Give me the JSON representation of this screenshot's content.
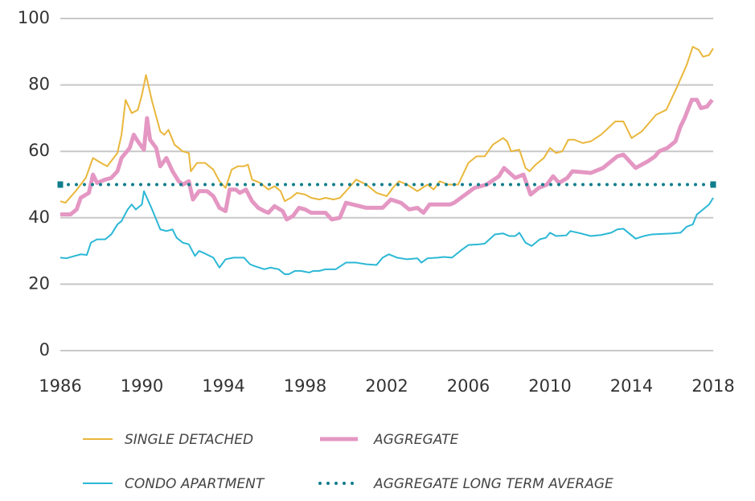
{
  "chart_data": {
    "type": "line",
    "xlim": [
      1986,
      2018
    ],
    "xticks": [
      1986,
      1990,
      1994,
      1998,
      2002,
      2006,
      2010,
      2014,
      2018
    ],
    "ylim": [
      0,
      100
    ],
    "yticks": [
      0,
      20,
      40,
      60,
      80,
      100
    ],
    "grid": true,
    "legend": "bottom",
    "series": [
      {
        "name": "SINGLE DETACHED",
        "color": "#e9b73c",
        "line_style": "solid",
        "x": [
          1986,
          1986.25,
          1986.75,
          1987.25,
          1987.6,
          1988,
          1988.3,
          1988.8,
          1989,
          1989.2,
          1989.5,
          1989.8,
          1990,
          1990.2,
          1990.5,
          1990.9,
          1991.1,
          1991.3,
          1991.6,
          1992,
          1992.3,
          1992.4,
          1992.7,
          1993.1,
          1993.5,
          1993.8,
          1994.1,
          1994.4,
          1994.7,
          1995,
          1995.2,
          1995.4,
          1995.8,
          1996.2,
          1996.5,
          1996.8,
          1997,
          1997.3,
          1997.6,
          1998,
          1998.3,
          1998.7,
          1999,
          1999.4,
          1999.7,
          2000,
          2000.5,
          2001,
          2001.5,
          2002,
          2002.3,
          2002.6,
          2003,
          2003.5,
          2004,
          2004.3,
          2004.6,
          2005,
          2005.5,
          2006,
          2006.4,
          2006.8,
          2007.2,
          2007.7,
          2007.9,
          2008.1,
          2008.5,
          2008.8,
          2009,
          2009.3,
          2009.7,
          2010,
          2010.3,
          2010.6,
          2010.9,
          2011.2,
          2011.6,
          2012,
          2012.5,
          2013.2,
          2013.6,
          2014,
          2014.5,
          2015.2,
          2015.7,
          2016.2,
          2016.7,
          2017,
          2017.3,
          2017.5,
          2017.8,
          2018
        ],
        "values": [
          45,
          44.5,
          48,
          52,
          58,
          56.5,
          55.5,
          59.5,
          65,
          75.5,
          71.5,
          72.5,
          77,
          83,
          75,
          66,
          65,
          66.5,
          62,
          60,
          59.5,
          54,
          56.5,
          56.5,
          54.5,
          51,
          49,
          54.5,
          55.5,
          55.5,
          56,
          51.5,
          50.5,
          48.5,
          49.5,
          48,
          45,
          46,
          47.5,
          47,
          46,
          45.5,
          46,
          45.5,
          46,
          48,
          51.5,
          50,
          47.5,
          46.5,
          49,
          51,
          50,
          48,
          50,
          48.5,
          51,
          50,
          50,
          56.5,
          58.5,
          58.5,
          62,
          64,
          63,
          60,
          60.5,
          55,
          54,
          56,
          58,
          61,
          59.5,
          60,
          63.5,
          63.5,
          62.5,
          63,
          65,
          69,
          69,
          64,
          66,
          71,
          72.5,
          79,
          86,
          91.5,
          90.5,
          88.5,
          89,
          91
        ]
      },
      {
        "name": "AGGREGATE",
        "color": "#e497c3",
        "line_style": "thick",
        "x": [
          1986,
          1986.5,
          1986.8,
          1987,
          1987.4,
          1987.6,
          1987.8,
          1988.2,
          1988.5,
          1988.8,
          1989,
          1989.4,
          1989.6,
          1989.8,
          1990.1,
          1990.25,
          1990.4,
          1990.7,
          1990.9,
          1991.2,
          1991.5,
          1991.8,
          1992,
          1992.3,
          1992.5,
          1992.8,
          1993.2,
          1993.5,
          1993.8,
          1994.1,
          1994.3,
          1994.6,
          1994.8,
          1995.1,
          1995.4,
          1995.7,
          1996,
          1996.2,
          1996.5,
          1996.9,
          1997.1,
          1997.4,
          1997.7,
          1998,
          1998.3,
          1998.7,
          1999,
          1999.3,
          1999.7,
          2000,
          2001,
          2001.8,
          2002.2,
          2002.7,
          2003.1,
          2003.5,
          2003.8,
          2004.1,
          2005.1,
          2005.3,
          2006.3,
          2006.9,
          2007.5,
          2007.75,
          2008.3,
          2008.7,
          2009.05,
          2009.45,
          2009.85,
          2010.15,
          2010.45,
          2010.85,
          2011.1,
          2012,
          2012.6,
          2013.3,
          2013.6,
          2014.2,
          2014.8,
          2015.15,
          2015.35,
          2015.75,
          2016.15,
          2016.4,
          2016.6,
          2016.95,
          2017.2,
          2017.4,
          2017.7,
          2017.95
        ],
        "values": [
          41,
          41,
          42.5,
          46,
          47.5,
          53,
          50.5,
          51.5,
          52,
          54,
          58,
          61,
          65,
          63,
          60.5,
          70,
          63.5,
          61,
          55.5,
          58,
          54,
          51,
          50,
          51,
          45.5,
          48,
          48,
          46.5,
          43,
          42,
          48.5,
          48.5,
          47.5,
          48.5,
          45,
          43,
          42,
          41.5,
          43.5,
          42,
          39.5,
          40.5,
          43,
          42.5,
          41.5,
          41.5,
          41.5,
          39.5,
          40,
          44.5,
          43,
          43,
          45.5,
          44.5,
          42.5,
          43,
          41.5,
          44,
          44,
          44.5,
          49,
          50,
          52.5,
          55,
          52,
          53,
          47,
          49,
          50,
          52.5,
          50.5,
          52,
          54,
          53.5,
          55,
          58.5,
          59,
          55,
          57,
          58.5,
          60,
          61,
          63,
          67.5,
          70,
          75.5,
          75.5,
          73,
          73.5,
          75.5
        ]
      },
      {
        "name": "CONDO APARTMENT",
        "color": "#2bb8d5",
        "line_style": "solid",
        "x": [
          1986,
          1986.3,
          1986.7,
          1987,
          1987.3,
          1987.5,
          1987.8,
          1988.2,
          1988.5,
          1988.8,
          1989,
          1989.3,
          1989.5,
          1989.7,
          1990,
          1990.1,
          1990.5,
          1990.9,
          1991.2,
          1991.5,
          1991.7,
          1992,
          1992.3,
          1992.6,
          1992.8,
          1993,
          1993.5,
          1993.8,
          1994.1,
          1994.5,
          1995,
          1995.3,
          1995.5,
          1996,
          1996.3,
          1996.7,
          1997,
          1997.2,
          1997.5,
          1997.8,
          1998.2,
          1998.4,
          1998.7,
          1999,
          1999.5,
          2000,
          2000.5,
          2001,
          2001.5,
          2001.8,
          2002.1,
          2002.5,
          2003,
          2003.5,
          2003.7,
          2004,
          2004.5,
          2004.8,
          2005.2,
          2005.6,
          2006,
          2006.5,
          2006.8,
          2007.3,
          2007.7,
          2008,
          2008.3,
          2008.5,
          2008.8,
          2009.1,
          2009.5,
          2009.8,
          2010,
          2010.3,
          2010.8,
          2011,
          2011.5,
          2012,
          2012.5,
          2013,
          2013.3,
          2013.6,
          2014.2,
          2014.6,
          2015,
          2016,
          2016.4,
          2016.7,
          2017,
          2017.2,
          2017.5,
          2017.8,
          2018
        ],
        "values": [
          28,
          27.8,
          28.5,
          29,
          28.8,
          32.5,
          33.5,
          33.5,
          35,
          38,
          39,
          42.5,
          44,
          42.5,
          44,
          48,
          42.5,
          36.5,
          36,
          36.5,
          34,
          32.5,
          32,
          28.5,
          30,
          29.5,
          28,
          25,
          27.5,
          28,
          28,
          26,
          25.5,
          24.5,
          25,
          24.5,
          23,
          23,
          24,
          24,
          23.5,
          24,
          24,
          24.5,
          24.5,
          26.5,
          26.5,
          26,
          25.8,
          28,
          29,
          28,
          27.5,
          27.8,
          26.5,
          27.8,
          28,
          28.2,
          28,
          30,
          31.8,
          32,
          32.2,
          35,
          35.3,
          34.5,
          34.5,
          35.5,
          32.5,
          31.5,
          33.5,
          34,
          35.5,
          34.5,
          34.7,
          36,
          35.3,
          34.5,
          34.8,
          35.5,
          36.5,
          36.7,
          33.7,
          34.5,
          35,
          35.3,
          35.5,
          37.3,
          38,
          41,
          42.5,
          44,
          46
        ]
      },
      {
        "name": "AGGREGATE LONG TERM AVERAGE",
        "color": "#0f7d8c",
        "line_style": "dotted",
        "x": [
          1986,
          2018
        ],
        "values": [
          50,
          50
        ]
      }
    ]
  }
}
